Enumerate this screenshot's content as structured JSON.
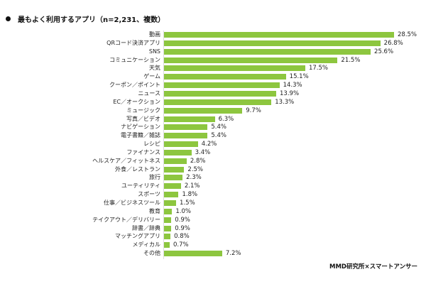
{
  "chart_data": {
    "type": "bar",
    "orientation": "horizontal",
    "title": "最もよく利用するアプリ（n=2,231、複数）",
    "categories": [
      "動画",
      "QRコード決済アプリ",
      "SNS",
      "コミュニケーション",
      "天気",
      "ゲーム",
      "クーポン／ポイント",
      "ニュース",
      "EC／オークション",
      "ミュージック",
      "写真／ビデオ",
      "ナビゲーション",
      "電子書籍／雑誌",
      "レシピ",
      "ファイナンス",
      "ヘルスケア／フィットネス",
      "外食／レストラン",
      "旅行",
      "ユーティリティ",
      "スポーツ",
      "仕事／ビジネスツール",
      "教育",
      "テイクアウト／デリバリー",
      "辞書／辞典",
      "マッチングアプリ",
      "メディカル",
      "その他"
    ],
    "values": [
      28.5,
      26.8,
      25.6,
      21.5,
      17.5,
      15.1,
      14.3,
      13.9,
      13.3,
      9.7,
      6.3,
      5.4,
      5.4,
      4.2,
      3.4,
      2.8,
      2.5,
      2.3,
      2.1,
      1.8,
      1.5,
      1.0,
      0.9,
      0.9,
      0.8,
      0.7,
      7.2
    ],
    "value_labels": [
      "28.5%",
      "26.8%",
      "25.6%",
      "21.5%",
      "17.5%",
      "15.1%",
      "14.3%",
      "13.9%",
      "13.3%",
      "9.7%",
      "6.3%",
      "5.4%",
      "5.4%",
      "4.2%",
      "3.4%",
      "2.8%",
      "2.5%",
      "2.3%",
      "2.1%",
      "1.8%",
      "1.5%",
      "1.0%",
      "0.9%",
      "0.9%",
      "0.8%",
      "0.7%",
      "7.2%"
    ],
    "unit": "%",
    "xlim": [
      0,
      30
    ],
    "grid": false,
    "color": "#8dc63f"
  },
  "source": "MMD研究所×スマートアンサー"
}
